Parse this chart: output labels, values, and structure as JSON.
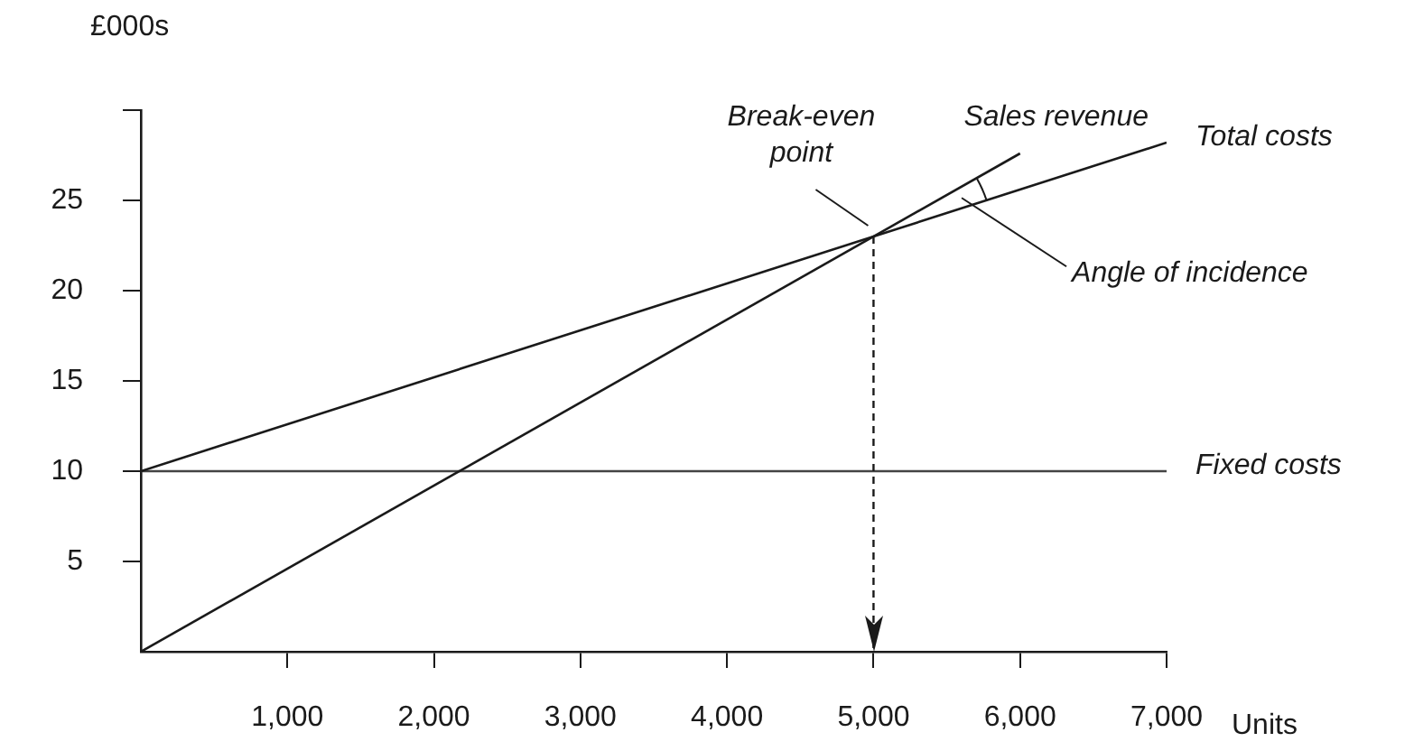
{
  "chart_data": {
    "type": "line",
    "ylabel": "£000s",
    "xlabel": "Units",
    "xlim": [
      0,
      7000
    ],
    "ylim": [
      0,
      30
    ],
    "xticks": [
      {
        "value": 1000,
        "label": "1,000"
      },
      {
        "value": 2000,
        "label": "2,000"
      },
      {
        "value": 3000,
        "label": "3,000"
      },
      {
        "value": 4000,
        "label": "4,000"
      },
      {
        "value": 5000,
        "label": "5,000"
      },
      {
        "value": 6000,
        "label": "6,000"
      },
      {
        "value": 7000,
        "label": "7,000"
      }
    ],
    "yticks": [
      5,
      10,
      15,
      20,
      25,
      {
        "value": 30,
        "label": null
      }
    ],
    "series": [
      {
        "name": "Sales revenue",
        "color": "#1a1a1a",
        "x": [
          0,
          6000
        ],
        "values": [
          0,
          27.6
        ]
      },
      {
        "name": "Total costs",
        "color": "#1a1a1a",
        "x": [
          0,
          7000
        ],
        "values": [
          10,
          28.2
        ]
      },
      {
        "name": "Fixed costs",
        "color": "#444444",
        "x": [
          0,
          7000
        ],
        "values": [
          10,
          10
        ]
      }
    ],
    "annotations": [
      {
        "text": "Break-even point",
        "x": 5000,
        "y": 23
      },
      "Angle of incidence"
    ],
    "ref_lines": [
      {
        "axis": "x",
        "value": 5000,
        "line_style": "dashed"
      }
    ],
    "grid": false,
    "legend": false,
    "marker": "none"
  }
}
